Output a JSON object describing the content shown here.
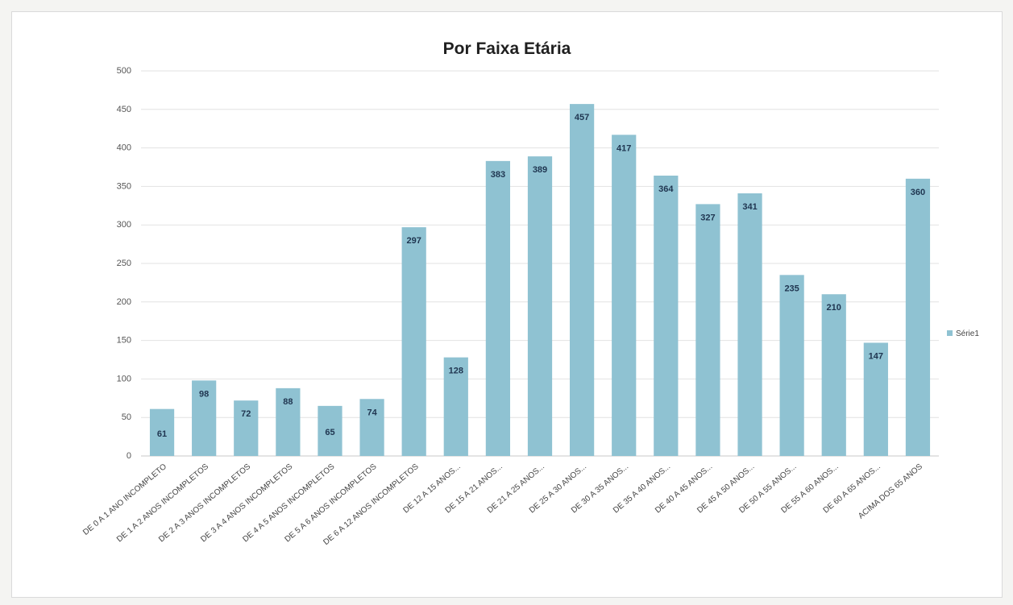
{
  "chart_data": {
    "type": "bar",
    "title": "Por Faixa Etária",
    "xlabel": "",
    "ylabel": "",
    "ylim": [
      0,
      500
    ],
    "yticks": [
      "0",
      "50",
      "100",
      "150",
      "200",
      "250",
      "300",
      "350",
      "400",
      "450",
      "500"
    ],
    "grid": true,
    "legend": "right",
    "bar_color": "#8fc2d2",
    "label_color": "#1f3550",
    "categories": [
      "DE 0 A 1 ANO INCOMPLETO",
      "DE 1 A 2 ANOS INCOMPLETOS",
      "DE 2 A 3 ANOS INCOMPLETOS",
      "DE 3 A 4 ANOS INCOMPLETOS",
      "DE 4 A 5 ANOS INCOMPLETOS",
      "DE 5 A 6 ANOS INCOMPLETOS",
      "DE 6 A 12 ANOS INCOMPLETOS",
      "DE 12 A 15 ANOS...",
      "DE 15 A 21 ANOS...",
      "DE 21 A 25 ANOS...",
      "DE 25 A 30 ANOS...",
      "DE 30 A 35 ANOS...",
      "DE 35 A 40 ANOS...",
      "DE 40 A 45 ANOS...",
      "DE 45 A 50 ANOS...",
      "DE 50 A 55 ANOS...",
      "DE 55 A 60 ANOS...",
      "DE 60 A 65 ANOS...",
      "ACIMA DOS 65 ANOS"
    ],
    "series": [
      {
        "name": "Série1",
        "values": [
          61,
          98,
          72,
          88,
          65,
          74,
          297,
          128,
          383,
          389,
          457,
          417,
          364,
          327,
          341,
          235,
          210,
          147,
          360
        ]
      }
    ]
  }
}
